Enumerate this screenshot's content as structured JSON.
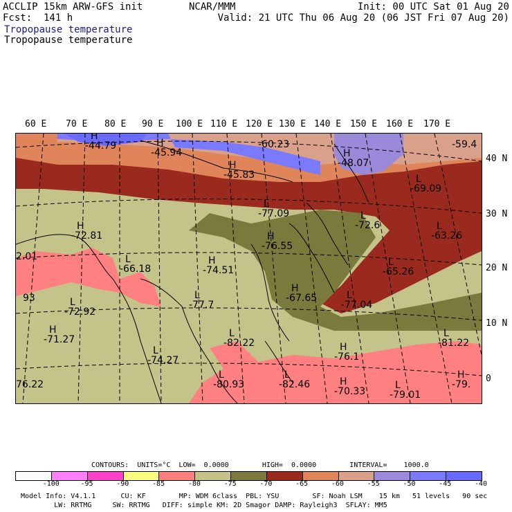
{
  "header": {
    "model": "ACCLIP 15km ARW-GFS init",
    "forecast": "Fcst:  141 h",
    "org": "NCAR/MMM",
    "init": "Init: 00 UTC Sat 01 Aug 20",
    "valid": "Valid: 21 UTC Thu 06 Aug 20 (06 JST Fri 07 Aug 20)",
    "field_title_1": "Tropopause temperature",
    "field_title_2": "Tropopause temperature"
  },
  "map": {
    "longitude_labels": [
      "60 E",
      "70 E",
      "80 E",
      "90 E",
      "100 E",
      "110 E",
      "120 E",
      "130 E",
      "140 E",
      "150 E",
      "160 E",
      "170 E"
    ],
    "latitude_labels": [
      "40 N",
      "30 N",
      "20 N",
      "10 N",
      "0"
    ],
    "extrema": [
      {
        "sym": "H",
        "value": "-44.79"
      },
      {
        "sym": "H",
        "value": "-45.94"
      },
      {
        "sym": "",
        "value": "-60.23"
      },
      {
        "sym": "H",
        "value": "-45.83"
      },
      {
        "sym": "H",
        "value": "-48.07"
      },
      {
        "sym": "",
        "value": "-59.4"
      },
      {
        "sym": "L",
        "value": "-69.09"
      },
      {
        "sym": "L",
        "value": "-77.09"
      },
      {
        "sym": "L",
        "value": "-72.6"
      },
      {
        "sym": "H",
        "value": "-72.81"
      },
      {
        "sym": "L",
        "value": "-63.26"
      },
      {
        "sym": "",
        "value": "2.01"
      },
      {
        "sym": "H",
        "value": "-76.55"
      },
      {
        "sym": "H",
        "value": "-74.51"
      },
      {
        "sym": "L",
        "value": "-66.18"
      },
      {
        "sym": "L",
        "value": "-65.26"
      },
      {
        "sym": "",
        "value": "93"
      },
      {
        "sym": "H",
        "value": "-67.65"
      },
      {
        "sym": "L",
        "value": "-77.04"
      },
      {
        "sym": "L",
        "value": "-72.92"
      },
      {
        "sym": "L",
        "value": "-77.7"
      },
      {
        "sym": "H",
        "value": "-71.27"
      },
      {
        "sym": "L",
        "value": "-82.22"
      },
      {
        "sym": "L",
        "value": "-81.22"
      },
      {
        "sym": "H",
        "value": "-76.1"
      },
      {
        "sym": "L",
        "value": "-74.27"
      },
      {
        "sym": "",
        "value": "76.22"
      },
      {
        "sym": "L",
        "value": "-80.93"
      },
      {
        "sym": "L",
        "value": "-82.46"
      },
      {
        "sym": "H",
        "value": "-70.33"
      },
      {
        "sym": "L",
        "value": "-79.01"
      },
      {
        "sym": "H",
        "value": "-79."
      }
    ]
  },
  "contours": {
    "text": "CONTOURS:  UNITS=°C  LOW=  0.0000        HIGH=  0.0000        INTERVAL=    1000.0"
  },
  "colorbar": {
    "colors": [
      "#ffffff",
      "#ff7fff",
      "#ff40c8",
      "#ffff80",
      "#ff8080",
      "#c3c38a",
      "#7a7a3c",
      "#9b2a1e",
      "#e0855a",
      "#d9a08a",
      "#9a8ad9",
      "#7a7aff",
      "#6a6aff"
    ],
    "labels": [
      "-100",
      "-95",
      "-90",
      "-85",
      "-80",
      "-75",
      "-70",
      "-65",
      "-60",
      "-55",
      "-50",
      "-45",
      "-40",
      "°C"
    ]
  },
  "footer": {
    "line1": "Model Info: V4.1.1      CU: KF        MP: WDM 6class  PBL: YSU        SF: Noah LSM    15 km   51 levels   90 sec",
    "line2": "        LW: RRTMG     SW: RRTMG   DIFF: simple KM: 2D Smagor DAMP: Rayleigh3  SFLAY: MM5"
  }
}
